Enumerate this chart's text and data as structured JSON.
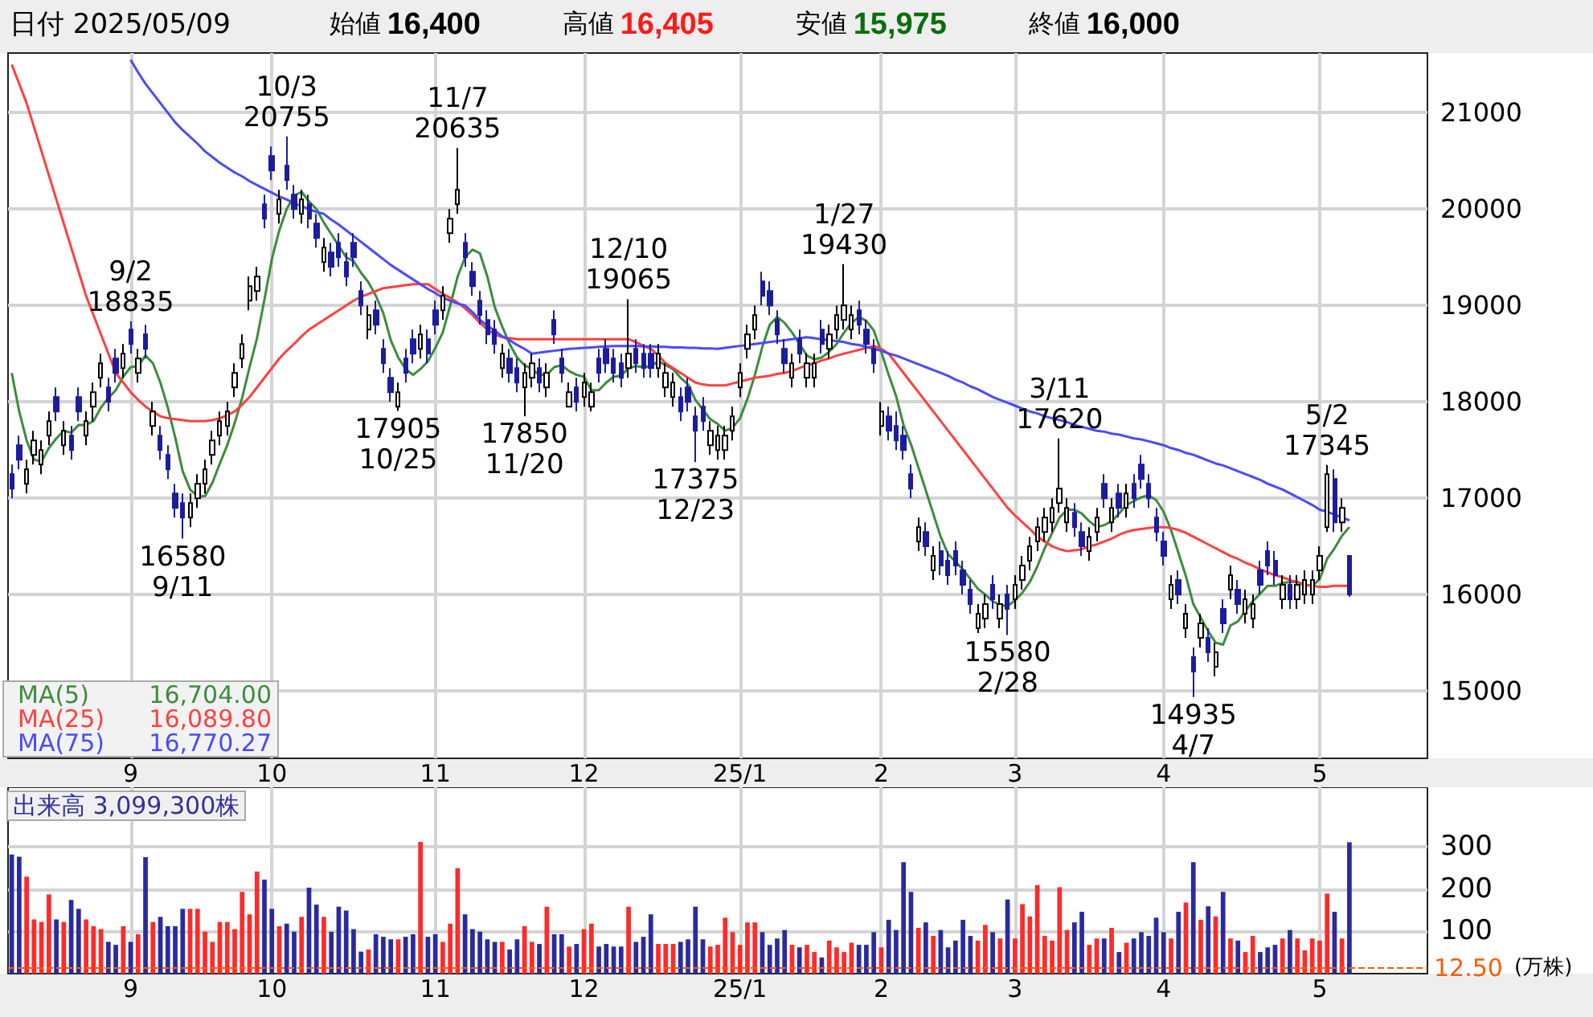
{
  "chart_data": [
    {
      "type": "candlestick",
      "title": "日付 2025/05/09",
      "subtitle": "始値 16,400 高値 16,405 安値 15,975 終値 16,000",
      "annotations": [
        "16,704.00",
        "16,089.80",
        "16,770.27",
        {
          "text": "9/2\n18835",
          "y": 18835
        },
        {
          "text": "16580\n9/11",
          "y": 16580
        },
        {
          "text": "10/3\n20755",
          "y": 20755
        },
        {
          "text": "17905\n10/25",
          "y": 17905
        },
        {
          "text": "11/7\n20635",
          "y": 20635
        },
        {
          "text": "17850\n11/20",
          "y": 17850
        },
        {
          "text": "12/10\n19065",
          "y": 19065
        },
        {
          "text": "17375\n12/23",
          "y": 17375
        },
        {
          "text": "1/27\n19430",
          "y": 19430
        },
        {
          "text": "15580\n2/28",
          "y": 15580
        },
        {
          "text": "3/11\n17620",
          "y": 17620
        },
        {
          "text": "14935\n4/7",
          "y": 14935
        },
        {
          "text": "5/2\n17345",
          "y": 17345
        }
      ],
      "categories": [
        null,
        null,
        null,
        null,
        null,
        null,
        null,
        null,
        null,
        null,
        null,
        null,
        null,
        null,
        null,
        null,
        "9",
        null,
        null,
        null,
        null,
        null,
        null,
        null,
        null,
        null,
        null,
        null,
        null,
        null,
        null,
        null,
        null,
        null,
        null,
        "10",
        null,
        null,
        null,
        null,
        null,
        null,
        null,
        null,
        null,
        null,
        null,
        null,
        null,
        null,
        null,
        null,
        null,
        null,
        null,
        null,
        null,
        "11",
        null,
        null,
        null,
        null,
        null,
        null,
        null,
        null,
        null,
        null,
        null,
        null,
        null,
        null,
        null,
        null,
        null,
        null,
        null,
        "12",
        null,
        null,
        null,
        null,
        null,
        null,
        null,
        null,
        null,
        null,
        null,
        null,
        null,
        null,
        null,
        null,
        null,
        null,
        null,
        null,
        "25/1",
        null,
        null,
        null,
        null,
        null,
        null,
        null,
        null,
        null,
        null,
        null,
        null,
        null,
        null,
        null,
        null,
        null,
        null,
        "2",
        null,
        null,
        null,
        null,
        null,
        null,
        null,
        null,
        null,
        null,
        null,
        null,
        null,
        null,
        null,
        null,
        null,
        "3",
        null,
        null,
        null,
        null,
        null,
        null,
        null,
        null,
        null,
        null,
        null,
        null,
        null,
        null,
        null,
        null,
        null,
        null,
        null,
        "4",
        null,
        null,
        null,
        null,
        null,
        null,
        null,
        null,
        null,
        null,
        null,
        null,
        null,
        null,
        null,
        null,
        null,
        null,
        null,
        null,
        "5",
        null,
        null,
        null,
        null
      ],
      "ohlc": [
        [
          17250,
          17350,
          17000,
          17100
        ],
        [
          17550,
          17650,
          17300,
          17400
        ],
        [
          17150,
          17400,
          17050,
          17300
        ],
        [
          17450,
          17700,
          17350,
          17600
        ],
        [
          17350,
          17600,
          17250,
          17500
        ],
        [
          17650,
          17900,
          17550,
          17800
        ],
        [
          18050,
          18150,
          17800,
          17900
        ],
        [
          17550,
          17800,
          17450,
          17700
        ],
        [
          17650,
          17750,
          17400,
          17500
        ],
        [
          18050,
          18150,
          17800,
          17900
        ],
        [
          17650,
          17900,
          17550,
          17800
        ],
        [
          17950,
          18200,
          17800,
          18100
        ],
        [
          18250,
          18500,
          18150,
          18400
        ],
        [
          18150,
          18250,
          17900,
          18000
        ],
        [
          18450,
          18550,
          18200,
          18300
        ],
        [
          18350,
          18600,
          18250,
          18500
        ],
        [
          18750,
          18835,
          18500,
          18600
        ],
        [
          18300,
          18550,
          18200,
          18450
        ],
        [
          18700,
          18800,
          18450,
          18550
        ],
        [
          17750,
          18000,
          17650,
          17900
        ],
        [
          17650,
          17750,
          17400,
          17500
        ],
        [
          17450,
          17550,
          17200,
          17300
        ],
        [
          17050,
          17150,
          16800,
          16900
        ],
        [
          16950,
          17050,
          16580,
          16800
        ],
        [
          16800,
          17050,
          16700,
          16950
        ],
        [
          17000,
          17250,
          16900,
          17150
        ],
        [
          17150,
          17400,
          17050,
          17300
        ],
        [
          17450,
          17700,
          17350,
          17600
        ],
        [
          17650,
          17900,
          17550,
          17800
        ],
        [
          17750,
          18000,
          17650,
          17900
        ],
        [
          18150,
          18400,
          18050,
          18300
        ],
        [
          18450,
          18700,
          18350,
          18600
        ],
        [
          19050,
          19300,
          18950,
          19200
        ],
        [
          19150,
          19400,
          19050,
          19300
        ],
        [
          20050,
          20150,
          19800,
          19900
        ],
        [
          20550,
          20650,
          20300,
          20400
        ],
        [
          19950,
          20200,
          19850,
          20100
        ],
        [
          20450,
          20755,
          20200,
          20300
        ],
        [
          20150,
          20250,
          19900,
          20000
        ],
        [
          19950,
          20200,
          19850,
          20100
        ],
        [
          20050,
          20150,
          19800,
          19900
        ],
        [
          19850,
          19950,
          19600,
          19700
        ],
        [
          19450,
          19700,
          19350,
          19600
        ],
        [
          19550,
          19650,
          19300,
          19400
        ],
        [
          19650,
          19750,
          19400,
          19500
        ],
        [
          19450,
          19550,
          19200,
          19300
        ],
        [
          19650,
          19750,
          19400,
          19500
        ],
        [
          19150,
          19250,
          18900,
          19000
        ],
        [
          18750,
          19000,
          18650,
          18900
        ],
        [
          18950,
          19050,
          18700,
          18800
        ],
        [
          18550,
          18650,
          18300,
          18400
        ],
        [
          18250,
          18350,
          18000,
          18100
        ],
        [
          17950,
          18200,
          17905,
          18100
        ],
        [
          18450,
          18550,
          18200,
          18300
        ],
        [
          18650,
          18750,
          18400,
          18500
        ],
        [
          18550,
          18800,
          18450,
          18700
        ],
        [
          18650,
          18750,
          18400,
          18500
        ],
        [
          18950,
          19050,
          18700,
          18800
        ],
        [
          18950,
          19200,
          18850,
          19100
        ],
        [
          19750,
          20000,
          19650,
          19900
        ],
        [
          20050,
          20635,
          19950,
          20200
        ],
        [
          19650,
          19750,
          19400,
          19500
        ],
        [
          19350,
          19450,
          19100,
          19200
        ],
        [
          19050,
          19150,
          18800,
          18900
        ],
        [
          18850,
          18950,
          18600,
          18700
        ],
        [
          18750,
          18850,
          18500,
          18600
        ],
        [
          18350,
          18600,
          18250,
          18500
        ],
        [
          18450,
          18550,
          18200,
          18300
        ],
        [
          18350,
          18450,
          18100,
          18200
        ],
        [
          18150,
          18400,
          17850,
          18300
        ],
        [
          18250,
          18500,
          18150,
          18400
        ],
        [
          18350,
          18450,
          18100,
          18200
        ],
        [
          18150,
          18400,
          18050,
          18300
        ],
        [
          18850,
          18950,
          18600,
          18700
        ],
        [
          18450,
          18550,
          18200,
          18300
        ],
        [
          17950,
          18200,
          17950,
          18100
        ],
        [
          18150,
          18250,
          17900,
          18000
        ],
        [
          18050,
          18300,
          17950,
          18200
        ],
        [
          17950,
          18200,
          17900,
          18100
        ],
        [
          18450,
          18550,
          18200,
          18300
        ],
        [
          18550,
          18650,
          18300,
          18400
        ],
        [
          18450,
          18550,
          18200,
          18300
        ],
        [
          18400,
          18500,
          18150,
          18250
        ],
        [
          18350,
          19065,
          18250,
          18500
        ],
        [
          18550,
          18650,
          18300,
          18400
        ],
        [
          18500,
          18600,
          18250,
          18350
        ],
        [
          18500,
          18600,
          18250,
          18350
        ],
        [
          18350,
          18600,
          18250,
          18500
        ],
        [
          18150,
          18400,
          18050,
          18300
        ],
        [
          18050,
          18300,
          17950,
          18200
        ],
        [
          18050,
          18150,
          17800,
          17900
        ],
        [
          18150,
          18250,
          17900,
          18000
        ],
        [
          17850,
          17950,
          17375,
          17700
        ],
        [
          17950,
          18050,
          17700,
          17800
        ],
        [
          17550,
          17800,
          17450,
          17700
        ],
        [
          17500,
          17750,
          17400,
          17650
        ],
        [
          17500,
          17750,
          17400,
          17650
        ],
        [
          17700,
          17950,
          17600,
          17850
        ],
        [
          18150,
          18400,
          18050,
          18300
        ],
        [
          18550,
          18800,
          18450,
          18700
        ],
        [
          18750,
          19000,
          18650,
          18900
        ],
        [
          19250,
          19350,
          19000,
          19100
        ],
        [
          19150,
          19250,
          18900,
          19000
        ],
        [
          18850,
          18950,
          18600,
          18700
        ],
        [
          18550,
          18650,
          18300,
          18400
        ],
        [
          18250,
          18500,
          18150,
          18400
        ],
        [
          18650,
          18750,
          18400,
          18500
        ],
        [
          18250,
          18500,
          18150,
          18400
        ],
        [
          18250,
          18500,
          18150,
          18400
        ],
        [
          18750,
          18850,
          18500,
          18600
        ],
        [
          18550,
          18800,
          18450,
          18700
        ],
        [
          18750,
          19000,
          18650,
          18900
        ],
        [
          18850,
          19430,
          18750,
          19000
        ],
        [
          18750,
          19000,
          18650,
          18900
        ],
        [
          18950,
          19050,
          18700,
          18800
        ],
        [
          18750,
          18850,
          18500,
          18600
        ],
        [
          18550,
          18650,
          18300,
          18400
        ],
        [
          17750,
          18000,
          17650,
          17900
        ],
        [
          17850,
          17950,
          17600,
          17700
        ],
        [
          17750,
          17900,
          17500,
          17600
        ],
        [
          17650,
          17750,
          17400,
          17500
        ],
        [
          17250,
          17350,
          17000,
          17100
        ],
        [
          16550,
          16800,
          16450,
          16700
        ],
        [
          16650,
          16750,
          16400,
          16500
        ],
        [
          16250,
          16500,
          16150,
          16400
        ],
        [
          16450,
          16550,
          16200,
          16300
        ],
        [
          16350,
          16450,
          16100,
          16200
        ],
        [
          16450,
          16550,
          16200,
          16300
        ],
        [
          16250,
          16350,
          16000,
          16100
        ],
        [
          16050,
          16150,
          15800,
          15900
        ],
        [
          15650,
          15900,
          15600,
          15800
        ],
        [
          15750,
          16000,
          15650,
          15900
        ],
        [
          16100,
          16200,
          15850,
          15950
        ],
        [
          15750,
          16000,
          15650,
          15900
        ],
        [
          16000,
          16100,
          15580,
          15850
        ],
        [
          15950,
          16200,
          15850,
          16100
        ],
        [
          16150,
          16400,
          16050,
          16300
        ],
        [
          16350,
          16600,
          16250,
          16500
        ],
        [
          16550,
          16800,
          16450,
          16700
        ],
        [
          16650,
          16900,
          16550,
          16800
        ],
        [
          16750,
          17000,
          16650,
          16900
        ],
        [
          16950,
          17620,
          16850,
          17100
        ],
        [
          16750,
          17000,
          16650,
          16900
        ],
        [
          16850,
          16950,
          16600,
          16700
        ],
        [
          16650,
          16750,
          16400,
          16500
        ],
        [
          16450,
          16700,
          16350,
          16600
        ],
        [
          16650,
          16900,
          16550,
          16800
        ],
        [
          17150,
          17250,
          16900,
          17000
        ],
        [
          16750,
          17000,
          16650,
          16900
        ],
        [
          17050,
          17150,
          16800,
          16900
        ],
        [
          16900,
          17150,
          16800,
          17050
        ],
        [
          17150,
          17250,
          16900,
          17000
        ],
        [
          17350,
          17450,
          17100,
          17200
        ],
        [
          17150,
          17250,
          16900,
          17000
        ],
        [
          16800,
          16900,
          16550,
          16650
        ],
        [
          16550,
          16650,
          16300,
          16400
        ],
        [
          15950,
          16200,
          15850,
          16100
        ],
        [
          16150,
          16250,
          15900,
          16000
        ],
        [
          15650,
          15900,
          15550,
          15800
        ],
        [
          15350,
          15450,
          14935,
          15200
        ],
        [
          15550,
          15800,
          15450,
          15700
        ],
        [
          15550,
          15650,
          15300,
          15400
        ],
        [
          15250,
          15500,
          15150,
          15400
        ],
        [
          15850,
          15950,
          15600,
          15700
        ],
        [
          16050,
          16300,
          15950,
          16200
        ],
        [
          16050,
          16150,
          15800,
          15900
        ],
        [
          15800,
          16050,
          15700,
          15950
        ],
        [
          15750,
          16000,
          15650,
          15900
        ],
        [
          16250,
          16350,
          16000,
          16100
        ],
        [
          16450,
          16550,
          16200,
          16300
        ],
        [
          16350,
          16450,
          16100,
          16200
        ],
        [
          15950,
          16200,
          15850,
          16100
        ],
        [
          16100,
          16200,
          15850,
          15950
        ],
        [
          15950,
          16200,
          15850,
          16100
        ],
        [
          16000,
          16250,
          15900,
          16150
        ],
        [
          16000,
          16250,
          15900,
          16150
        ],
        [
          16250,
          16500,
          16150,
          16400
        ],
        [
          16700,
          17345,
          16650,
          17250
        ],
        [
          17200,
          17300,
          16650,
          16750
        ],
        [
          16750,
          17000,
          16650,
          16900
        ],
        [
          16400,
          16405,
          15975,
          16000
        ]
      ],
      "series": [
        {
          "type": "line",
          "name": "MA(5)",
          "color": "#3c8c3c",
          "values": [
            18300,
            17900,
            17600,
            17400,
            17380,
            17520,
            17620,
            17700,
            17680,
            17760,
            17760,
            17800,
            17940,
            18040,
            18120,
            18260,
            18360,
            18370,
            18480,
            18400,
            18200,
            17940,
            17630,
            17280,
            17090,
            17020,
            17020,
            17160,
            17360,
            17550,
            17780,
            18040,
            18360,
            18660,
            19060,
            19480,
            19780,
            20000,
            20140,
            20180,
            20080,
            20000,
            19860,
            19740,
            19620,
            19500,
            19460,
            19340,
            19240,
            19100,
            18920,
            18640,
            18460,
            18340,
            18280,
            18340,
            18420,
            18560,
            18720,
            19000,
            19300,
            19500,
            19580,
            19540,
            19300,
            18980,
            18780,
            18600,
            18460,
            18380,
            18340,
            18280,
            18280,
            18360,
            18380,
            18320,
            18280,
            18260,
            18120,
            18120,
            18200,
            18260,
            18270,
            18350,
            18370,
            18360,
            18370,
            18420,
            18380,
            18340,
            18250,
            18180,
            18020,
            17920,
            17820,
            17770,
            17700,
            17730,
            17830,
            18030,
            18280,
            18570,
            18800,
            18880,
            18820,
            18720,
            18600,
            18480,
            18440,
            18460,
            18520,
            18600,
            18720,
            18820,
            18880,
            18840,
            18740,
            18520,
            18280,
            18060,
            17760,
            17560,
            17320,
            17080,
            16840,
            16600,
            16420,
            16340,
            16260,
            16160,
            16060,
            16000,
            15930,
            15890,
            15880,
            15940,
            16020,
            16130,
            16290,
            16480,
            16640,
            16800,
            16880,
            16880,
            16840,
            16760,
            16700,
            16720,
            16760,
            16840,
            16930,
            16970,
            17010,
            17030,
            16980,
            16860,
            16670,
            16430,
            16190,
            15900,
            15760,
            15620,
            15500,
            15480,
            15680,
            15720,
            15830,
            15930,
            16010,
            16090,
            16090,
            16120,
            16130,
            16130,
            16100,
            16090,
            16160,
            16370,
            16480,
            16610,
            16700
          ]
        },
        {
          "type": "line",
          "name": "MA(25)",
          "color": "#ff4040",
          "values": [
            21500,
            21300,
            21100,
            20850,
            20600,
            20350,
            20100,
            19850,
            19600,
            19350,
            19100,
            18900,
            18700,
            18500,
            18300,
            18200,
            18100,
            18020,
            17950,
            17900,
            17850,
            17830,
            17820,
            17810,
            17800,
            17800,
            17800,
            17810,
            17830,
            17860,
            17900,
            17970,
            18050,
            18150,
            18250,
            18350,
            18450,
            18530,
            18600,
            18680,
            18750,
            18800,
            18850,
            18900,
            18950,
            19000,
            19050,
            19090,
            19120,
            19150,
            19180,
            19190,
            19200,
            19210,
            19220,
            19220,
            19220,
            19170,
            19120,
            19080,
            19030,
            18970,
            18900,
            18820,
            18750,
            18700,
            18670,
            18660,
            18650,
            18650,
            18650,
            18650,
            18650,
            18650,
            18650,
            18650,
            18650,
            18650,
            18650,
            18650,
            18650,
            18650,
            18650,
            18650,
            18620,
            18580,
            18550,
            18480,
            18400,
            18350,
            18300,
            18250,
            18200,
            18180,
            18170,
            18170,
            18170,
            18190,
            18210,
            18230,
            18250,
            18260,
            18270,
            18290,
            18300,
            18320,
            18350,
            18380,
            18400,
            18430,
            18450,
            18480,
            18500,
            18520,
            18540,
            18560,
            18580,
            18550,
            18500,
            18400,
            18300,
            18200,
            18100,
            18000,
            17900,
            17800,
            17700,
            17600,
            17500,
            17400,
            17300,
            17200,
            17100,
            17000,
            16900,
            16820,
            16750,
            16680,
            16600,
            16550,
            16500,
            16470,
            16450,
            16460,
            16470,
            16500,
            16520,
            16550,
            16580,
            16620,
            16650,
            16670,
            16680,
            16690,
            16700,
            16700,
            16690,
            16670,
            16640,
            16600,
            16560,
            16520,
            16480,
            16440,
            16400,
            16370,
            16330,
            16300,
            16260,
            16230,
            16200,
            16180,
            16150,
            16130,
            16100,
            16090,
            16080,
            16080,
            16090,
            16090,
            16090
          ]
        },
        {
          "type": "line",
          "name": "MA(75)",
          "color": "#4a4aff",
          "values": [
            null,
            null,
            null,
            null,
            null,
            null,
            null,
            null,
            null,
            null,
            null,
            null,
            null,
            null,
            null,
            null,
            21550,
            21420,
            21300,
            21200,
            21100,
            21000,
            20900,
            20820,
            20750,
            20680,
            20600,
            20540,
            20480,
            20430,
            20380,
            20340,
            20290,
            20250,
            20210,
            20170,
            20130,
            20100,
            20060,
            20030,
            20000,
            19970,
            19950,
            19890,
            19840,
            19780,
            19720,
            19660,
            19600,
            19540,
            19480,
            19420,
            19370,
            19320,
            19270,
            19220,
            19170,
            19130,
            19080,
            19050,
            19020,
            19000,
            18930,
            18850,
            18790,
            18740,
            18680,
            18640,
            18590,
            18550,
            18500,
            18510,
            18520,
            18530,
            18540,
            18550,
            18555,
            18560,
            18565,
            18570,
            18575,
            18580,
            18580,
            18580,
            18580,
            18575,
            18575,
            18570,
            18570,
            18565,
            18565,
            18560,
            18560,
            18555,
            18555,
            18550,
            18560,
            18570,
            18580,
            18590,
            18600,
            18610,
            18620,
            18630,
            18640,
            18650,
            18660,
            18670,
            18660,
            18650,
            18640,
            18630,
            18620,
            18600,
            18590,
            18570,
            18550,
            18530,
            18500,
            18480,
            18450,
            18420,
            18390,
            18360,
            18330,
            18300,
            18270,
            18230,
            18200,
            18160,
            18130,
            18090,
            18050,
            18020,
            17990,
            17960,
            17930,
            17900,
            17880,
            17850,
            17830,
            17810,
            17790,
            17760,
            17740,
            17720,
            17700,
            17690,
            17670,
            17660,
            17640,
            17620,
            17610,
            17590,
            17570,
            17550,
            17520,
            17500,
            17470,
            17450,
            17420,
            17390,
            17360,
            17340,
            17310,
            17280,
            17250,
            17220,
            17190,
            17150,
            17120,
            17090,
            17050,
            17010,
            16970,
            16930,
            16880,
            16860,
            16830,
            16800,
            16770
          ]
        }
      ],
      "ylim": [
        14300,
        21620
      ],
      "yticks": [
        15000,
        16000,
        17000,
        18000,
        19000,
        20000,
        21000
      ],
      "grid": true,
      "legend": "bottom left",
      "marker": "none"
    },
    {
      "type": "bar",
      "title": "出来高 3,099,300株",
      "ylabel": "(万株)",
      "categories": [
        null,
        null,
        null,
        null,
        null,
        null,
        null,
        null,
        null,
        null,
        null,
        null,
        null,
        null,
        null,
        null,
        "9",
        null,
        null,
        null,
        null,
        null,
        null,
        null,
        null,
        null,
        null,
        null,
        null,
        null,
        null,
        null,
        null,
        null,
        null,
        "10",
        null,
        null,
        null,
        null,
        null,
        null,
        null,
        null,
        null,
        null,
        null,
        null,
        null,
        null,
        null,
        null,
        null,
        null,
        null,
        null,
        null,
        "11",
        null,
        null,
        null,
        null,
        null,
        null,
        null,
        null,
        null,
        null,
        null,
        null,
        null,
        null,
        null,
        null,
        null,
        null,
        null,
        "12",
        null,
        null,
        null,
        null,
        null,
        null,
        null,
        null,
        null,
        null,
        null,
        null,
        null,
        null,
        null,
        null,
        null,
        null,
        null,
        null,
        "25/1",
        null,
        null,
        null,
        null,
        null,
        null,
        null,
        null,
        null,
        null,
        null,
        null,
        null,
        null,
        null,
        null,
        null,
        null,
        "2",
        null,
        null,
        null,
        null,
        null,
        null,
        null,
        null,
        null,
        null,
        null,
        null,
        null,
        null,
        null,
        null,
        null,
        "3",
        null,
        null,
        null,
        null,
        null,
        null,
        null,
        null,
        null,
        null,
        null,
        null,
        null,
        null,
        null,
        null,
        null,
        null,
        null,
        "4",
        null,
        null,
        null,
        null,
        null,
        null,
        null,
        null,
        null,
        null,
        null,
        null,
        null,
        null,
        null,
        null,
        null,
        null,
        null,
        null,
        "5",
        null,
        null,
        null,
        null
      ],
      "values": [
        281,
        276,
        229,
        128,
        122,
        187,
        128,
        122,
        174,
        153,
        128,
        112,
        105,
        75,
        68,
        112,
        75,
        93,
        275,
        122,
        134,
        112,
        112,
        153,
        153,
        153,
        99,
        75,
        122,
        122,
        105,
        193,
        140,
        241,
        222,
        153,
        112,
        118,
        99,
        134,
        203,
        163,
        134,
        99,
        158,
        149,
        105,
        52,
        57,
        93,
        87,
        81,
        81,
        87,
        93,
        311,
        87,
        93,
        75,
        118,
        249,
        140,
        105,
        99,
        81,
        75,
        75,
        57,
        81,
        112,
        75,
        70,
        158,
        93,
        93,
        64,
        70,
        105,
        118,
        64,
        70,
        64,
        64,
        158,
        75,
        87,
        140,
        70,
        70,
        70,
        75,
        81,
        158,
        81,
        64,
        68,
        132,
        98,
        68,
        121,
        121,
        98,
        68,
        83,
        103,
        68,
        62,
        68,
        51,
        38,
        78,
        62,
        51,
        73,
        68,
        68,
        98,
        62,
        127,
        103,
        263,
        193,
        108,
        121,
        89,
        103,
        62,
        78,
        127,
        89,
        78,
        115,
        98,
        83,
        175,
        83,
        164,
        135,
        209,
        89,
        78,
        204,
        103,
        121,
        146,
        68,
        83,
        83,
        108,
        51,
        73,
        83,
        98,
        89,
        132,
        98,
        83,
        146,
        168,
        263,
        127,
        159,
        135,
        193,
        83,
        78,
        51,
        89,
        51,
        62,
        68,
        83,
        103,
        83,
        55,
        83,
        78,
        189,
        146,
        83,
        310
      ],
      "colors": [
        "#2a2aa0",
        "#2a2aa0",
        "#ff2a2a",
        "#ff2a2a",
        "#ff2a2a",
        "#ff2a2a",
        "#2a2aa0",
        "#ff2a2a",
        "#2a2aa0",
        "#2a2aa0",
        "#ff2a2a",
        "#ff2a2a",
        "#ff2a2a",
        "#2a2aa0",
        "#2a2aa0",
        "#ff2a2a",
        "#2a2aa0",
        "#ff2a2a",
        "#2a2aa0",
        "#ff2a2a",
        "#2a2aa0",
        "#2a2aa0",
        "#2a2aa0",
        "#2a2aa0",
        "#ff2a2a",
        "#ff2a2a",
        "#ff2a2a",
        "#ff2a2a",
        "#ff2a2a",
        "#ff2a2a",
        "#ff2a2a",
        "#ff2a2a",
        "#ff2a2a",
        "#ff2a2a",
        "#2a2aa0",
        "#2a2aa0",
        "#ff2a2a",
        "#2a2aa0",
        "#2a2aa0",
        "#ff2a2a",
        "#2a2aa0",
        "#2a2aa0",
        "#ff2a2a",
        "#2a2aa0",
        "#2a2aa0",
        "#2a2aa0",
        "#2a2aa0",
        "#2a2aa0",
        "#ff2a2a",
        "#2a2aa0",
        "#2a2aa0",
        "#2a2aa0",
        "#ff2a2a",
        "#2a2aa0",
        "#2a2aa0",
        "#ff2a2a",
        "#2a2aa0",
        "#2a2aa0",
        "#ff2a2a",
        "#ff2a2a",
        "#ff2a2a",
        "#2a2aa0",
        "#2a2aa0",
        "#2a2aa0",
        "#2a2aa0",
        "#2a2aa0",
        "#ff2a2a",
        "#2a2aa0",
        "#2a2aa0",
        "#ff2a2a",
        "#ff2a2a",
        "#2a2aa0",
        "#ff2a2a",
        "#2a2aa0",
        "#2a2aa0",
        "#ff2a2a",
        "#2a2aa0",
        "#ff2a2a",
        "#ff2a2a",
        "#2a2aa0",
        "#2a2aa0",
        "#2a2aa0",
        "#2a2aa0",
        "#ff2a2a",
        "#2a2aa0",
        "#2a2aa0",
        "#2a2aa0",
        "#ff2a2a",
        "#ff2a2a",
        "#ff2a2a",
        "#2a2aa0",
        "#2a2aa0",
        "#2a2aa0",
        "#2a2aa0",
        "#ff2a2a",
        "#ff2a2a",
        "#ff2a2a",
        "#ff2a2a",
        "#ff2a2a",
        "#ff2a2a",
        "#ff2a2a",
        "#2a2aa0",
        "#2a2aa0",
        "#2a2aa0",
        "#2a2aa0",
        "#ff2a2a",
        "#2a2aa0",
        "#ff2a2a",
        "#ff2a2a",
        "#2a2aa0",
        "#ff2a2a",
        "#ff2a2a",
        "#ff2a2a",
        "#ff2a2a",
        "#2a2aa0",
        "#2a2aa0",
        "#2a2aa0",
        "#ff2a2a",
        "#2a2aa0",
        "#2a2aa0",
        "#2a2aa0",
        "#2a2aa0",
        "#ff2a2a",
        "#2a2aa0",
        "#ff2a2a",
        "#2a2aa0",
        "#2a2aa0",
        "#2a2aa0",
        "#2a2aa0",
        "#2a2aa0",
        "#ff2a2a",
        "#ff2a2a",
        "#2a2aa0",
        "#ff2a2a",
        "#2a2aa0",
        "#ff2a2a",
        "#ff2a2a",
        "#ff2a2a",
        "#ff2a2a",
        "#ff2a2a",
        "#ff2a2a",
        "#ff2a2a",
        "#ff2a2a",
        "#2a2aa0",
        "#2a2aa0",
        "#ff2a2a",
        "#ff2a2a",
        "#2a2aa0",
        "#ff2a2a",
        "#2a2aa0",
        "#ff2a2a",
        "#2a2aa0",
        "#2a2aa0",
        "#2a2aa0",
        "#2a2aa0",
        "#2a2aa0",
        "#ff2a2a",
        "#2a2aa0",
        "#ff2a2a",
        "#2a2aa0",
        "#ff2a2a",
        "#2a2aa0",
        "#ff2a2a",
        "#2a2aa0",
        "#ff2a2a",
        "#2a2aa0",
        "#ff2a2a",
        "#ff2a2a",
        "#2a2aa0",
        "#2a2aa0",
        "#2a2aa0",
        "#ff2a2a",
        "#2a2aa0",
        "#ff2a2a",
        "#ff2a2a",
        "#ff2a2a",
        "#ff2a2a",
        "#ff2a2a",
        "#2a2aa0",
        "#ff2a2a",
        "#2a2aa0"
      ],
      "ylim": [
        0,
        440
      ],
      "yticks": [
        100,
        200,
        300
      ],
      "grid": true,
      "ref_lines": [
        {
          "axis": "y",
          "value": 12.5,
          "label": "12.50",
          "color": "#ff5a00",
          "line_style": "dashed"
        }
      ]
    }
  ]
}
